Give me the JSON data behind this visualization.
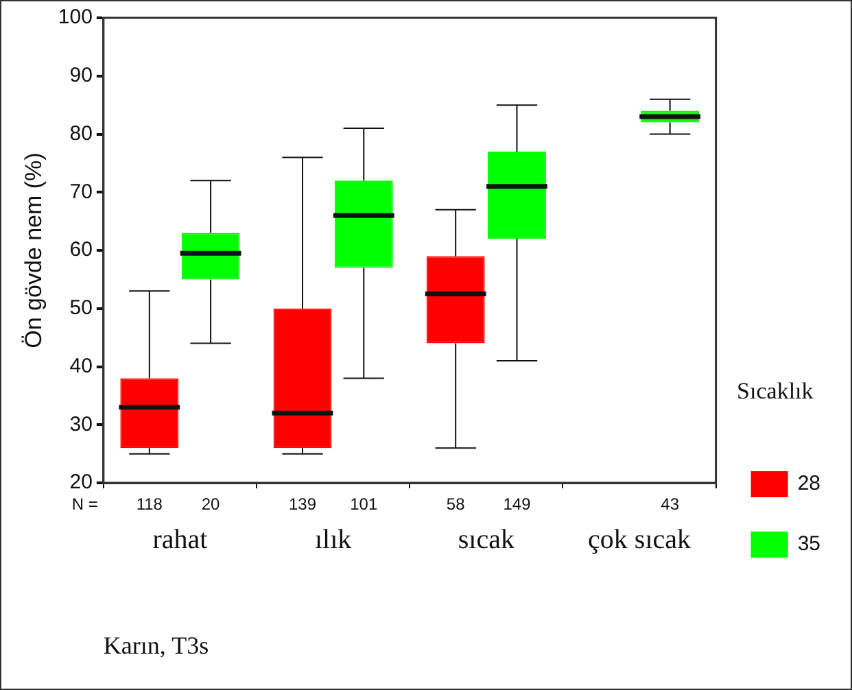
{
  "chart_data": {
    "type": "box",
    "ylabel": "Ön gövde nem (%)",
    "legend_title": "Sıcaklık",
    "categories": [
      "rahat",
      "ılık",
      "sıcak",
      "çok sıcak"
    ],
    "ylim": [
      20,
      100
    ],
    "yticks": [
      20,
      30,
      40,
      50,
      60,
      70,
      80,
      90,
      100
    ],
    "grid": false,
    "legend": "right",
    "annotations": [
      "N =",
      "Karın, T3s"
    ],
    "series": [
      {
        "name": "28",
        "color": "#ff0000",
        "boxes": [
          {
            "low": 25,
            "q1": 26,
            "median": 33,
            "q3": 38,
            "high": 53
          },
          {
            "low": 25,
            "q1": 26,
            "median": 32,
            "q3": 50,
            "high": 76
          },
          {
            "low": 26,
            "q1": 44,
            "median": 52.5,
            "q3": 59,
            "high": 67
          },
          null
        ],
        "value_labels": [
          "118",
          "139",
          "58",
          null
        ]
      },
      {
        "name": "35",
        "color": "#00ff00",
        "boxes": [
          {
            "low": 44,
            "q1": 55,
            "median": 59.5,
            "q3": 63,
            "high": 72
          },
          {
            "low": 38,
            "q1": 57,
            "median": 66,
            "q3": 72,
            "high": 81
          },
          {
            "low": 41,
            "q1": 62,
            "median": 71,
            "q3": 77,
            "high": 85
          },
          {
            "low": 80,
            "q1": 82,
            "median": 83,
            "q3": 84,
            "high": 86
          }
        ],
        "value_labels": [
          "20",
          "101",
          "149",
          "43"
        ]
      }
    ]
  }
}
